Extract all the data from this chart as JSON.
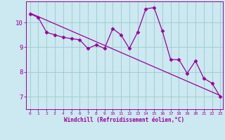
{
  "xlabel": "Windchill (Refroidissement éolien,°C)",
  "background_color": "#cce8f0",
  "line_color": "#990099",
  "grid_color": "#99cccc",
  "xlim": [
    -0.5,
    23.3
  ],
  "ylim": [
    6.5,
    10.85
  ],
  "yticks": [
    7,
    8,
    9,
    10
  ],
  "xticks": [
    0,
    1,
    2,
    3,
    4,
    5,
    6,
    7,
    8,
    9,
    10,
    11,
    12,
    13,
    14,
    15,
    16,
    17,
    18,
    19,
    20,
    21,
    22,
    23
  ],
  "series": [
    [
      0,
      10.35
    ],
    [
      1,
      10.2
    ],
    [
      2,
      9.6
    ],
    [
      3,
      9.5
    ],
    [
      4,
      9.4
    ],
    [
      5,
      9.35
    ],
    [
      6,
      9.3
    ],
    [
      7,
      8.95
    ],
    [
      8,
      9.1
    ],
    [
      9,
      8.95
    ],
    [
      10,
      9.75
    ],
    [
      11,
      9.5
    ],
    [
      12,
      8.95
    ],
    [
      13,
      9.6
    ],
    [
      14,
      10.55
    ],
    [
      15,
      10.6
    ],
    [
      16,
      9.65
    ],
    [
      17,
      8.5
    ],
    [
      18,
      8.5
    ],
    [
      19,
      7.95
    ],
    [
      20,
      8.45
    ],
    [
      21,
      7.75
    ],
    [
      22,
      7.55
    ],
    [
      23,
      7.0
    ]
  ],
  "regression_line": [
    [
      0,
      10.38
    ],
    [
      23,
      7.05
    ]
  ],
  "markersize": 2.5,
  "linewidth": 0.9
}
